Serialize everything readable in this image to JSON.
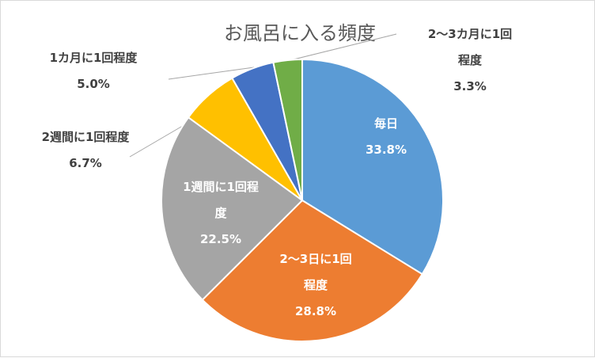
{
  "chart_data": {
    "type": "pie",
    "title": "お風呂に入る頻度",
    "slices": [
      {
        "label": [
          "毎日"
        ],
        "value": 33.8,
        "display": "33.8%",
        "color": "#5b9bd5",
        "label_side": "inside"
      },
      {
        "label": [
          "2～3日に1回",
          "程度"
        ],
        "value": 28.8,
        "display": "28.8%",
        "color": "#ed7d31",
        "label_side": "inside"
      },
      {
        "label": [
          "1週間に1回程",
          "度"
        ],
        "value": 22.5,
        "display": "22.5%",
        "color": "#a5a5a5",
        "label_side": "inside"
      },
      {
        "label": [
          "2週間に1回程度"
        ],
        "value": 6.7,
        "display": "6.7%",
        "color": "#ffc000",
        "label_side": "outside"
      },
      {
        "label": [
          "1カ月に1回程度"
        ],
        "value": 5.0,
        "display": "5.0%",
        "color": "#4472c4",
        "label_side": "outside"
      },
      {
        "label": [
          "2～3カ月に1回",
          "程度"
        ],
        "value": 3.3,
        "display": "3.3%",
        "color": "#70ad47",
        "label_side": "outside"
      }
    ]
  }
}
